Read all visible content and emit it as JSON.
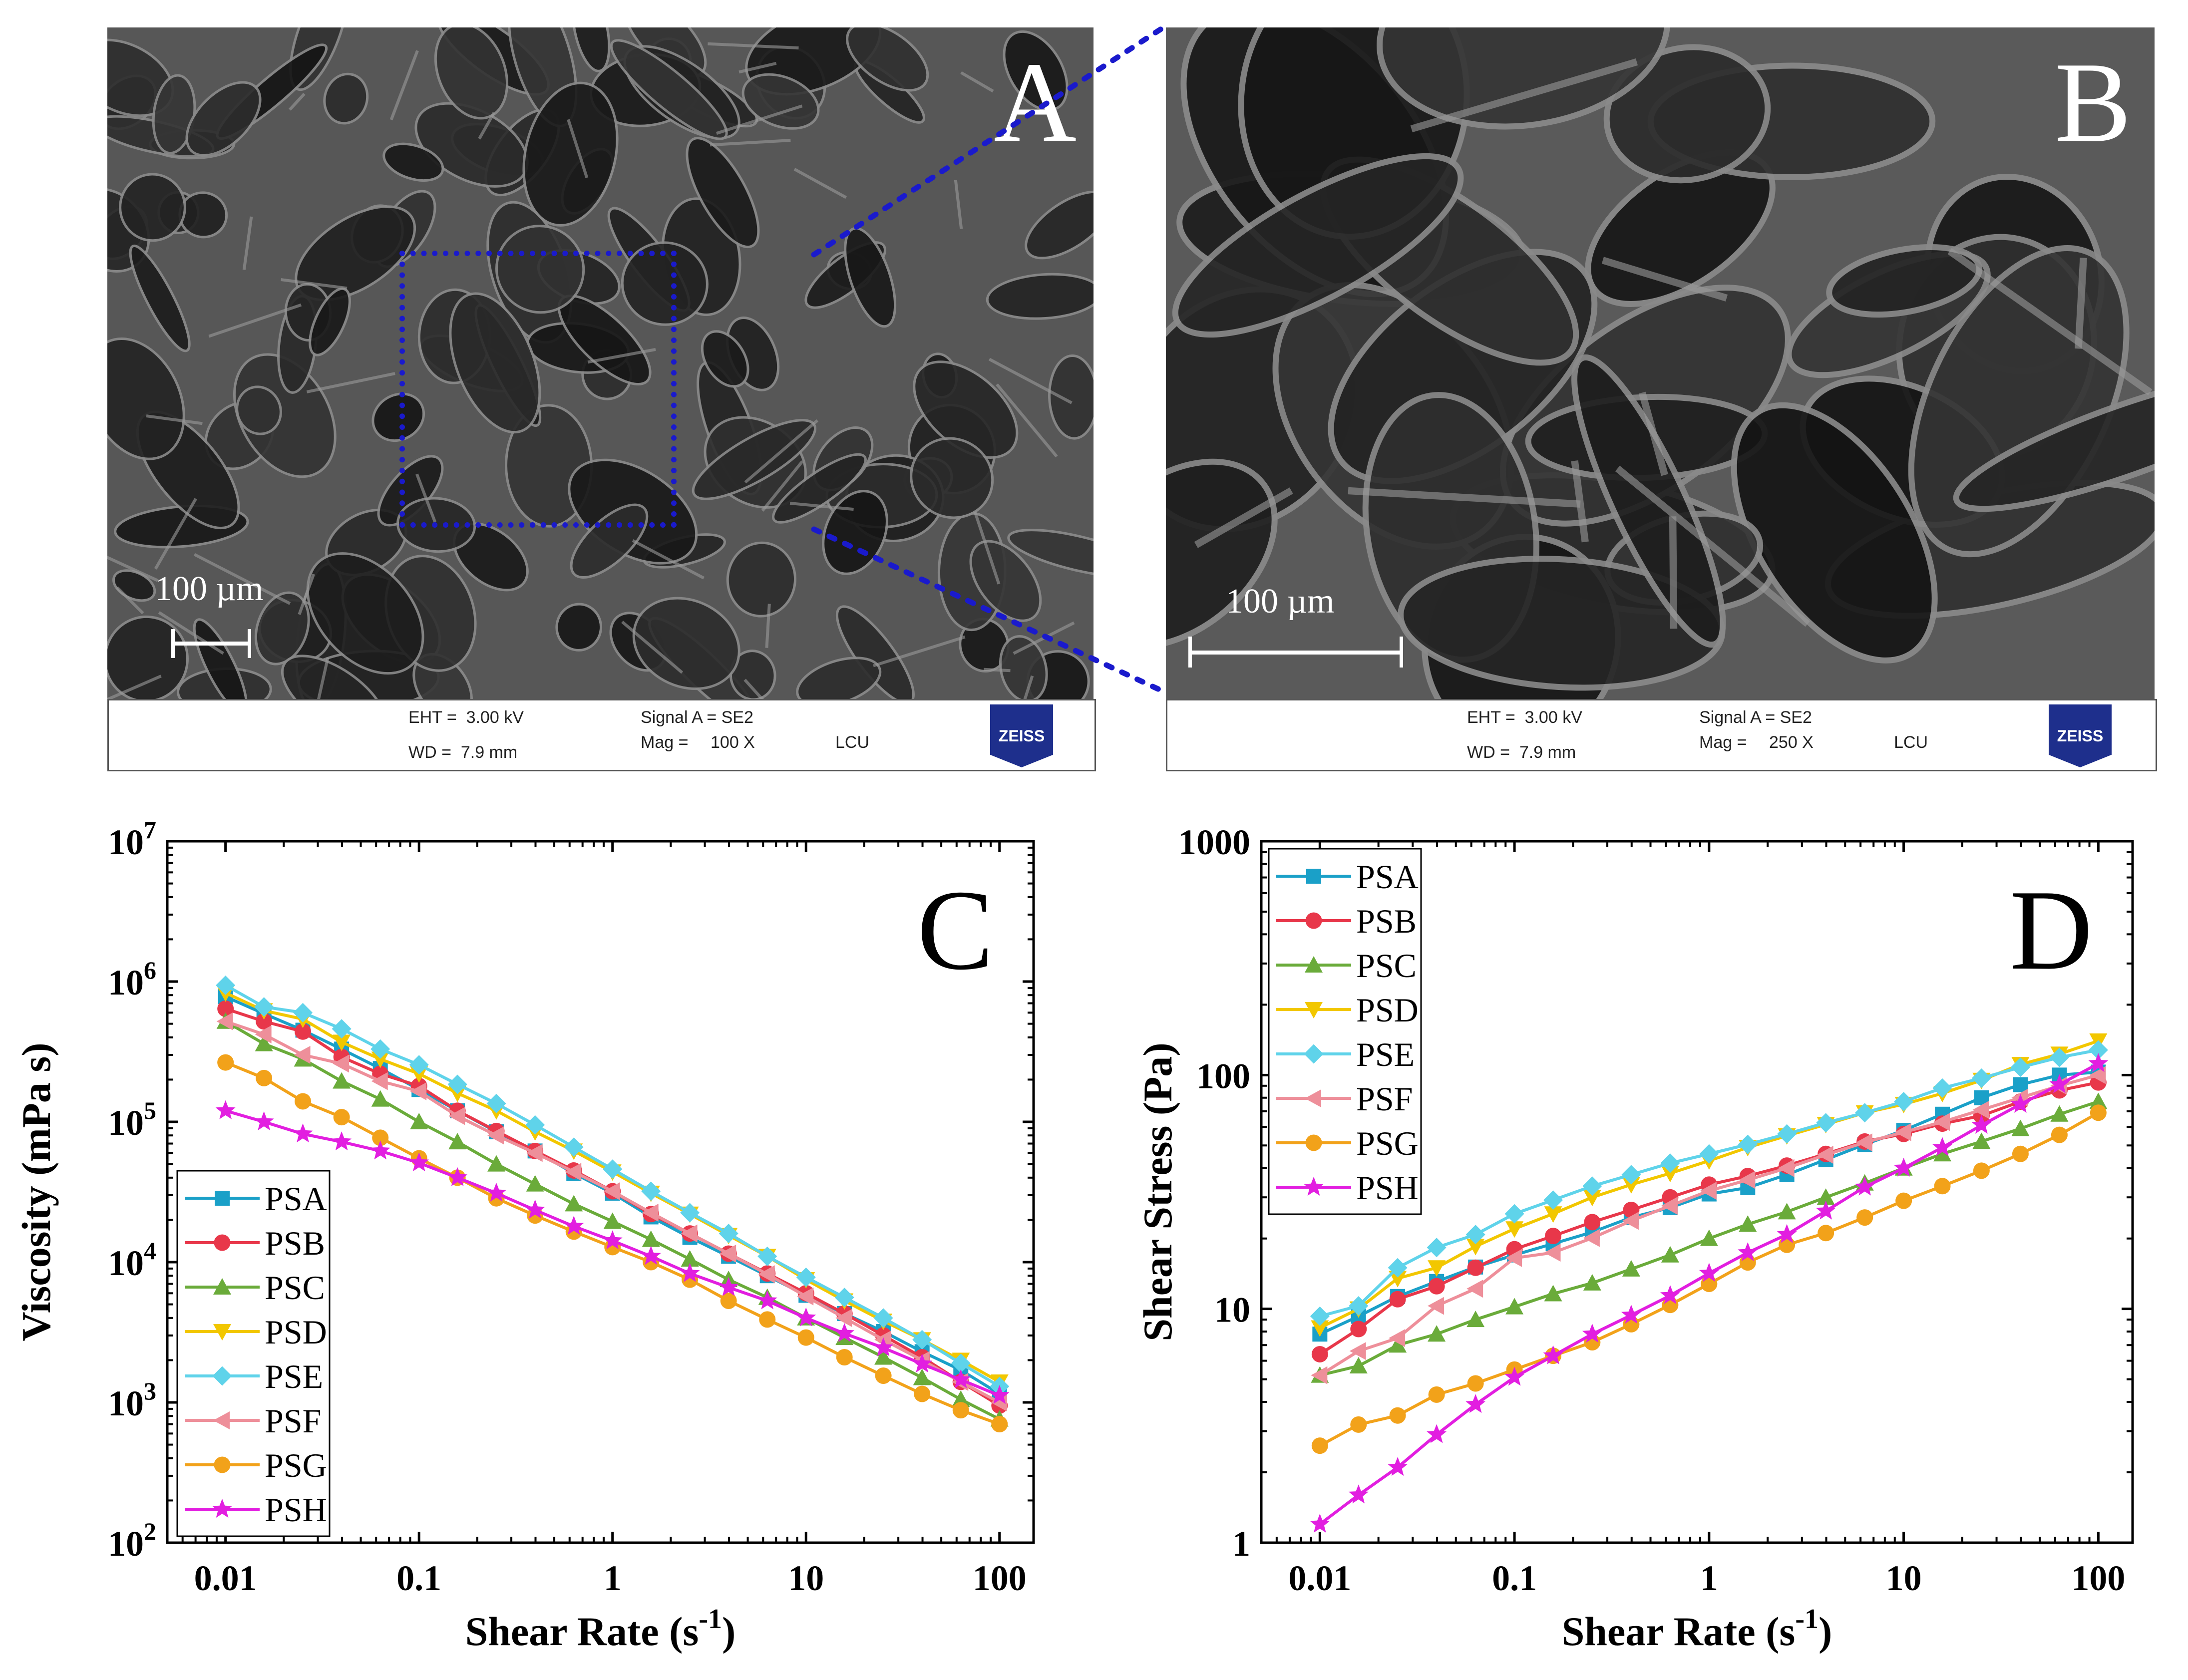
{
  "colors": {
    "PSA": "#1aa0c8",
    "PSB": "#e8374a",
    "PSC": "#6aab3a",
    "PSD": "#f2c700",
    "PSE": "#5fd3ea",
    "PSF": "#ee8f9a",
    "PSG": "#f2a21a",
    "PSH": "#e21ee0",
    "zoom_box": "#1a1acc"
  },
  "sem": {
    "A": {
      "letter": "A",
      "scale_label": "100 µm",
      "eht": "EHT =  3.00 kV",
      "wd": "WD =  7.9 mm",
      "signal": "Signal A = SE2",
      "mag_label": "Mag =",
      "mag_value": "100 X",
      "lab": "LCU",
      "logo": "ZEISS"
    },
    "B": {
      "letter": "B",
      "scale_label": "100 µm",
      "eht": "EHT =  3.00 kV",
      "wd": "WD =  7.9 mm",
      "signal": "Signal A = SE2",
      "mag_label": "Mag =",
      "mag_value": "250 X",
      "lab": "LCU",
      "logo": "ZEISS"
    }
  },
  "chart_data": [
    {
      "type": "line",
      "panel": "C",
      "title": "",
      "xlabel_main": "Shear Rate (s",
      "xlabel_sup": "-1",
      "xlabel_end": ")",
      "ylabel": "Viscosity (mPa s)",
      "xscale": "log",
      "yscale": "log",
      "xlim": [
        0.005,
        150
      ],
      "ylim": [
        100,
        10000000
      ],
      "xticks": [
        0.01,
        0.1,
        1,
        10,
        100
      ],
      "xtick_labels": [
        "0.01",
        "0.1",
        "1",
        "10",
        "100"
      ],
      "ytick_base": "10",
      "ytick_exps": [
        "2",
        "3",
        "4",
        "5",
        "6",
        "7"
      ],
      "legend_position": "bottom-left",
      "x": [
        0.01,
        0.0158,
        0.0251,
        0.0398,
        0.0631,
        0.1,
        0.158,
        0.251,
        0.398,
        0.631,
        1,
        1.58,
        2.51,
        3.98,
        6.31,
        10,
        15.8,
        25.1,
        39.8,
        63.1,
        100
      ],
      "series": [
        {
          "name": "PSA",
          "marker": "square",
          "values": [
            780000,
            590000,
            450000,
            330000,
            240000,
            170000,
            120000,
            85000,
            62000,
            43000,
            31000,
            21000,
            15000,
            11000,
            8000,
            5800,
            4300,
            3200,
            2300,
            1700,
            1150
          ]
        },
        {
          "name": "PSB",
          "marker": "circle",
          "values": [
            640000,
            520000,
            440000,
            290000,
            220000,
            180000,
            120000,
            86000,
            62000,
            45000,
            32000,
            22000,
            16000,
            11500,
            8300,
            6000,
            4300,
            3000,
            2100,
            1400,
            950
          ]
        },
        {
          "name": "PSC",
          "marker": "triangle-up",
          "values": [
            520000,
            360000,
            280000,
            195000,
            145000,
            100000,
            72000,
            50000,
            36000,
            26000,
            19500,
            14500,
            10500,
            7500,
            5600,
            4000,
            2900,
            2100,
            1500,
            1050,
            760
          ]
        },
        {
          "name": "PSD",
          "marker": "triangle-down",
          "values": [
            830000,
            620000,
            540000,
            370000,
            280000,
            220000,
            160000,
            120000,
            85000,
            62000,
            44000,
            31000,
            22000,
            15500,
            11000,
            7500,
            5300,
            3800,
            2800,
            2000,
            1400
          ]
        },
        {
          "name": "PSE",
          "marker": "diamond",
          "values": [
            940000,
            660000,
            600000,
            460000,
            330000,
            255000,
            185000,
            135000,
            95000,
            66000,
            46000,
            32000,
            22500,
            16000,
            11000,
            7800,
            5600,
            4000,
            2800,
            1900,
            1300
          ]
        },
        {
          "name": "PSF",
          "marker": "triangle-left",
          "values": [
            520000,
            420000,
            300000,
            260000,
            195000,
            165000,
            110000,
            80000,
            60000,
            44000,
            32000,
            22500,
            16000,
            11500,
            8200,
            5700,
            4000,
            2800,
            2000,
            1400,
            1000
          ]
        },
        {
          "name": "PSG",
          "marker": "circle",
          "values": [
            265000,
            205000,
            140000,
            108000,
            77000,
            55000,
            40000,
            28500,
            21500,
            16500,
            12800,
            10000,
            7500,
            5300,
            3900,
            2900,
            2100,
            1550,
            1150,
            880,
            700
          ]
        },
        {
          "name": "PSH",
          "marker": "star",
          "values": [
            120000,
            100000,
            82000,
            72000,
            62000,
            51000,
            40000,
            31000,
            23500,
            18000,
            14200,
            11000,
            8300,
            6600,
            5300,
            4000,
            3100,
            2450,
            1880,
            1450,
            1120
          ]
        }
      ]
    },
    {
      "type": "line",
      "panel": "D",
      "title": "",
      "xlabel_main": "Shear Rate (s",
      "xlabel_sup": "-1",
      "xlabel_end": ")",
      "ylabel": "Shear Stress (Pa)",
      "xscale": "log",
      "yscale": "log",
      "xlim": [
        0.005,
        150
      ],
      "ylim": [
        1,
        1000
      ],
      "xticks": [
        0.01,
        0.1,
        1,
        10,
        100
      ],
      "xtick_labels": [
        "0.01",
        "0.1",
        "1",
        "10",
        "100"
      ],
      "yticks": [
        1,
        10,
        100,
        1000
      ],
      "ytick_labels": [
        "1",
        "10",
        "100",
        "1000"
      ],
      "legend_position": "top-left",
      "x": [
        0.01,
        0.0158,
        0.0251,
        0.0398,
        0.0631,
        0.1,
        0.158,
        0.251,
        0.398,
        0.631,
        1,
        1.58,
        2.51,
        3.98,
        6.31,
        10,
        15.8,
        25.1,
        39.8,
        63.1,
        100
      ],
      "series": [
        {
          "name": "PSA",
          "values": [
            7.8,
            9.3,
            11.3,
            13.1,
            15.1,
            17.0,
            19.0,
            21.3,
            24.6,
            27.1,
            31,
            33,
            37.5,
            43.5,
            50.5,
            58,
            68,
            80,
            91,
            100,
            103
          ]
        },
        {
          "name": "PSB",
          "values": [
            6.4,
            8.2,
            11.0,
            12.5,
            15.0,
            18.0,
            20.5,
            23.5,
            26.5,
            30,
            34,
            37,
            41,
            46,
            52,
            56,
            62,
            67,
            77,
            86,
            93
          ]
        },
        {
          "name": "PSC",
          "values": [
            5.2,
            5.7,
            7.0,
            7.8,
            9.0,
            10.2,
            11.6,
            12.9,
            14.8,
            17,
            20,
            23,
            26,
            30,
            34.5,
            40,
            46,
            52,
            59,
            68,
            77
          ]
        },
        {
          "name": "PSD",
          "values": [
            8.3,
            10.0,
            13.5,
            15.0,
            18.5,
            22.0,
            25.5,
            30,
            34,
            38,
            43,
            49,
            55,
            61.5,
            69,
            75,
            83.5,
            95,
            111,
            123,
            140
          ]
        },
        {
          "name": "PSE",
          "values": [
            9.3,
            10.3,
            15.0,
            18.3,
            20.8,
            25.5,
            29.2,
            33.5,
            37.5,
            42,
            46,
            50.5,
            56,
            62.5,
            69,
            77,
            88,
            97,
            108,
            119,
            128
          ]
        },
        {
          "name": "PSF",
          "values": [
            5.2,
            6.6,
            7.5,
            10.3,
            12.2,
            16.5,
            17.4,
            20.1,
            23.8,
            27.6,
            32,
            35.6,
            40,
            45.6,
            51.5,
            57,
            63,
            71,
            80,
            90,
            100
          ]
        },
        {
          "name": "PSG",
          "values": [
            2.6,
            3.2,
            3.5,
            4.3,
            4.8,
            5.5,
            6.3,
            7.2,
            8.6,
            10.4,
            12.8,
            15.8,
            18.8,
            21.1,
            24.6,
            29,
            33.5,
            39,
            46,
            55.5,
            69
          ]
        },
        {
          "name": "PSH",
          "values": [
            1.2,
            1.6,
            2.1,
            2.9,
            3.9,
            5.1,
            6.3,
            7.8,
            9.4,
            11.4,
            14.2,
            17.4,
            20.8,
            26.2,
            33.2,
            40,
            49,
            61,
            75,
            91,
            112
          ]
        }
      ]
    }
  ]
}
